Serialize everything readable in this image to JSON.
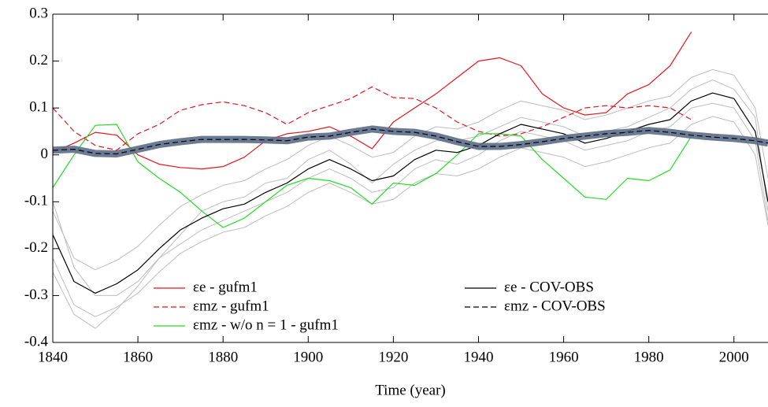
{
  "chart_data": {
    "type": "line",
    "xlabel": "Time (year)",
    "x": [
      1840,
      1845,
      1850,
      1855,
      1860,
      1865,
      1870,
      1875,
      1880,
      1885,
      1890,
      1895,
      1900,
      1905,
      1910,
      1915,
      1920,
      1925,
      1930,
      1935,
      1940,
      1945,
      1950,
      1955,
      1960,
      1965,
      1970,
      1975,
      1980,
      1985,
      1990,
      1995,
      2000,
      2005,
      2008
    ],
    "xlim": [
      1840,
      2008
    ],
    "xticks": [
      1840,
      1860,
      1880,
      1900,
      1920,
      1940,
      1960,
      1980,
      2000
    ],
    "ylim": [
      -0.4,
      0.3
    ],
    "yticks": [
      0.3,
      0.2,
      0.1,
      0,
      -0.1,
      -0.2,
      -0.3,
      -0.4
    ],
    "series": [
      {
        "color": "#bdbdbd",
        "values": [
          -0.12,
          -0.22,
          -0.245,
          -0.225,
          -0.195,
          -0.15,
          -0.11,
          -0.085,
          -0.065,
          -0.055,
          -0.03,
          -0.01,
          0.02,
          0.04,
          0.02,
          -0.005,
          0.005,
          0.04,
          0.06,
          0.055,
          0.07,
          0.095,
          0.115,
          0.105,
          0.095,
          0.075,
          0.085,
          0.1,
          0.115,
          0.125,
          0.165,
          0.182,
          0.17,
          0.1,
          -0.05
        ]
      },
      {
        "color": "#bdbdbd",
        "values": [
          -0.22,
          -0.32,
          -0.345,
          -0.325,
          -0.295,
          -0.25,
          -0.21,
          -0.185,
          -0.165,
          -0.155,
          -0.13,
          -0.11,
          -0.08,
          -0.06,
          -0.08,
          -0.105,
          -0.095,
          -0.06,
          -0.04,
          -0.045,
          -0.03,
          -0.005,
          0.015,
          0.005,
          -0.005,
          -0.025,
          -0.015,
          0,
          0.015,
          0.025,
          0.065,
          0.082,
          0.07,
          0,
          -0.15
        ]
      },
      {
        "color": "#bdbdbd",
        "values": [
          -0.1,
          -0.24,
          -0.3,
          -0.3,
          -0.27,
          -0.22,
          -0.17,
          -0.12,
          -0.1,
          -0.09,
          -0.06,
          -0.05,
          -0.01,
          0.01,
          -0.02,
          -0.06,
          -0.02,
          0.01,
          0.03,
          0.03,
          0.04,
          0.06,
          0.08,
          0.07,
          0.06,
          0.04,
          0.05,
          0.06,
          0.08,
          0.1,
          0.14,
          0.16,
          0.14,
          0.08,
          -0.12
        ]
      },
      {
        "color": "#bdbdbd",
        "values": [
          -0.25,
          -0.34,
          -0.37,
          -0.33,
          -0.28,
          -0.22,
          -0.19,
          -0.16,
          -0.14,
          -0.12,
          -0.1,
          -0.08,
          -0.05,
          -0.03,
          -0.05,
          -0.08,
          -0.07,
          -0.03,
          -0.01,
          -0.02,
          0,
          0.03,
          0.05,
          0.04,
          0.03,
          0.01,
          0.02,
          0.03,
          0.05,
          0.06,
          0.1,
          0.11,
          0.1,
          0.03,
          -0.14
        ]
      },
      {
        "name": "εe - gufm1",
        "color": "#e8141c",
        "values": [
          0.005,
          0.025,
          0.048,
          0.042,
          0.0,
          -0.02,
          -0.027,
          -0.03,
          -0.025,
          -0.005,
          0.03,
          0.045,
          0.05,
          0.06,
          0.04,
          0.013,
          0.07,
          0.1,
          0.13,
          0.165,
          0.2,
          0.207,
          0.19,
          0.13,
          0.1,
          0.085,
          0.09,
          0.13,
          0.15,
          0.19,
          0.262,
          null,
          null,
          null,
          null
        ]
      },
      {
        "name": "εmz - gufm1",
        "color": "#e8141c",
        "dash": true,
        "values": [
          0.1,
          0.05,
          0.02,
          0.01,
          0.045,
          0.065,
          0.095,
          0.107,
          0.113,
          0.105,
          0.09,
          0.065,
          0.09,
          0.105,
          0.12,
          0.145,
          0.122,
          0.12,
          0.1,
          0.07,
          0.05,
          0.04,
          0.045,
          0.06,
          0.08,
          0.1,
          0.105,
          0.1,
          0.105,
          0.1,
          0.075,
          null,
          null,
          null,
          null
        ]
      },
      {
        "name": "εmz - w/o n = 1 - gufm1",
        "color": "#22dd22",
        "values": [
          -0.07,
          0,
          0.063,
          0.065,
          -0.015,
          -0.05,
          -0.08,
          -0.12,
          -0.155,
          -0.135,
          -0.1,
          -0.065,
          -0.05,
          -0.055,
          -0.07,
          -0.105,
          -0.06,
          -0.065,
          -0.04,
          0,
          0.045,
          0.045,
          0.04,
          -0.01,
          -0.05,
          -0.09,
          -0.095,
          -0.05,
          -0.055,
          -0.032,
          0.04,
          null,
          null,
          null,
          null
        ]
      },
      {
        "name": "εe - COV-OBS",
        "color": "#000000",
        "values": [
          -0.17,
          -0.27,
          -0.295,
          -0.275,
          -0.245,
          -0.2,
          -0.16,
          -0.135,
          -0.115,
          -0.105,
          -0.08,
          -0.06,
          -0.03,
          -0.01,
          -0.03,
          -0.055,
          -0.045,
          -0.01,
          0.01,
          0.005,
          0.02,
          0.045,
          0.065,
          0.055,
          0.045,
          0.025,
          0.035,
          0.05,
          0.065,
          0.075,
          0.115,
          0.132,
          0.12,
          0.05,
          -0.1
        ]
      },
      {
        "name": "εmz - COV-OBS",
        "color": "#000000",
        "dash": true,
        "halo": "#5b6d88",
        "values": [
          0.01,
          0.012,
          0.003,
          0.002,
          0.012,
          0.022,
          0.028,
          0.033,
          0.033,
          0.033,
          0.032,
          0.03,
          0.038,
          0.04,
          0.048,
          0.055,
          0.05,
          0.048,
          0.04,
          0.028,
          0.018,
          0.018,
          0.022,
          0.028,
          0.035,
          0.04,
          0.045,
          0.048,
          0.052,
          0.048,
          0.042,
          0.038,
          0.035,
          0.03,
          0.025
        ]
      }
    ]
  }
}
